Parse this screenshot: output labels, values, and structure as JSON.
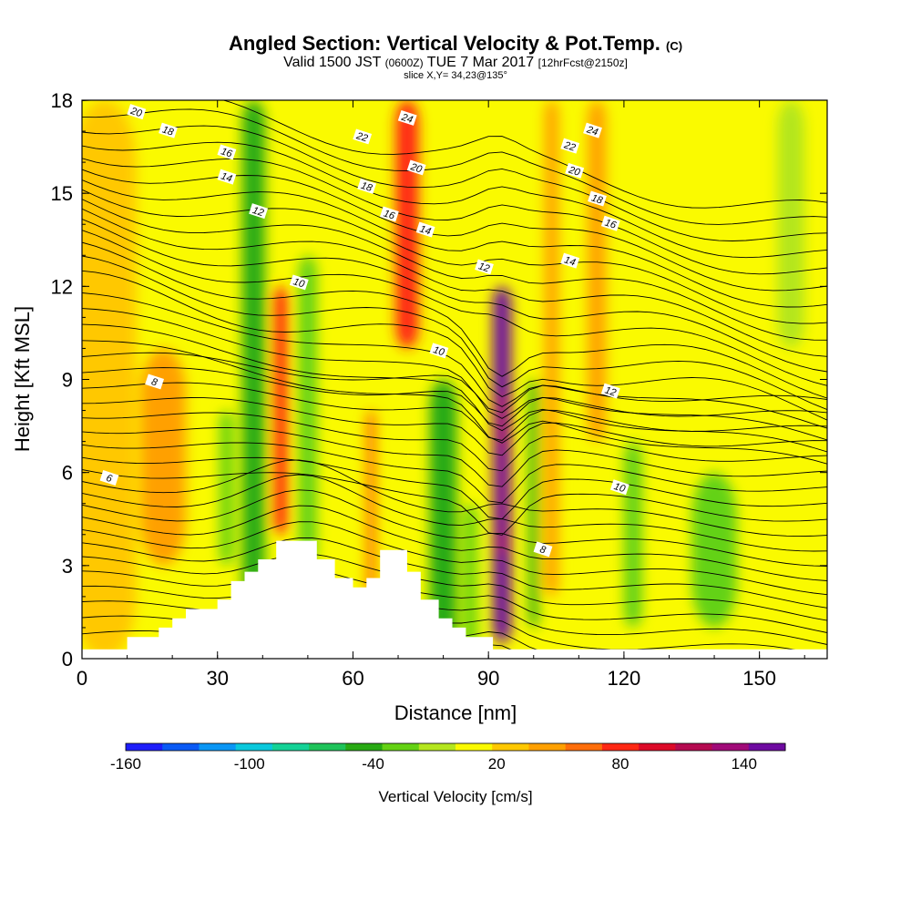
{
  "title": {
    "main": "Angled Section: Vertical Velocity & Pot.Temp.",
    "main_suffix": "(C)",
    "valid_prefix": "Valid 1500 JST",
    "valid_z": "(0600Z)",
    "valid_date": "TUE 7 Mar 2017",
    "valid_fcst": "[12hrFcst@2150z]",
    "slice": "slice X,Y= 34,23@135°"
  },
  "chart_data": {
    "type": "heatmap",
    "xlabel": "Distance [nm]",
    "ylabel": "Height [Kft MSL]",
    "xlim": [
      0,
      165
    ],
    "ylim": [
      0,
      18
    ],
    "x_ticks": [
      0,
      30,
      60,
      90,
      120,
      150
    ],
    "y_ticks": [
      0,
      3,
      6,
      9,
      12,
      15,
      18
    ],
    "terrain": [
      [
        0,
        0.3
      ],
      [
        10,
        0.3
      ],
      [
        10,
        0.7
      ],
      [
        17,
        0.7
      ],
      [
        17,
        1
      ],
      [
        20,
        1
      ],
      [
        20,
        1.3
      ],
      [
        23,
        1.3
      ],
      [
        23,
        1.6
      ],
      [
        30,
        1.6
      ],
      [
        30,
        1.9
      ],
      [
        33,
        1.9
      ],
      [
        33,
        2.5
      ],
      [
        36,
        2.5
      ],
      [
        36,
        2.8
      ],
      [
        39,
        2.8
      ],
      [
        39,
        3.2
      ],
      [
        43,
        3.2
      ],
      [
        43,
        3.8
      ],
      [
        52,
        3.8
      ],
      [
        52,
        3.2
      ],
      [
        56,
        3.2
      ],
      [
        56,
        2.6
      ],
      [
        60,
        2.6
      ],
      [
        60,
        2.3
      ],
      [
        63,
        2.3
      ],
      [
        63,
        2.6
      ],
      [
        66,
        2.6
      ],
      [
        66,
        3.5
      ],
      [
        72,
        3.5
      ],
      [
        72,
        2.8
      ],
      [
        75,
        2.8
      ],
      [
        75,
        1.9
      ],
      [
        79,
        1.9
      ],
      [
        79,
        1.3
      ],
      [
        82,
        1.3
      ],
      [
        82,
        1
      ],
      [
        85,
        1
      ],
      [
        85,
        0.7
      ],
      [
        91,
        0.7
      ],
      [
        91,
        0.3
      ],
      [
        165,
        0.3
      ]
    ],
    "colorbar": {
      "label": "Vertical Velocity [cm/s]",
      "tick_labels": [
        "-160",
        "-100",
        "-40",
        "20",
        "80",
        "140"
      ],
      "tick_values": [
        -160,
        -100,
        -40,
        20,
        80,
        140
      ],
      "range": [
        -160,
        160
      ],
      "colors": [
        "#1e1efa",
        "#0a5af5",
        "#0a96f5",
        "#0ac8dc",
        "#14d296",
        "#1ec35a",
        "#28aa14",
        "#64d214",
        "#b4e61e",
        "#fafa00",
        "#ffc800",
        "#ffa000",
        "#ff6e0a",
        "#ff2814",
        "#dc0a28",
        "#b40a50",
        "#a00a78",
        "#6e0aa0"
      ]
    },
    "velocity_features": [
      {
        "x": 5,
        "zmin": 0,
        "zmax": 18,
        "width": 14,
        "value": 35
      },
      {
        "x": 18,
        "zmin": 3,
        "zmax": 10,
        "width": 10,
        "value": 50
      },
      {
        "x": 38,
        "zmin": 1,
        "zmax": 18,
        "width": 5,
        "value": -45
      },
      {
        "x": 32,
        "zmin": 3,
        "zmax": 8,
        "width": 3,
        "value": -30
      },
      {
        "x": 44,
        "zmin": 4,
        "zmax": 12,
        "width": 3,
        "value": 80
      },
      {
        "x": 50,
        "zmin": 3,
        "zmax": 13,
        "width": 4,
        "value": -20
      },
      {
        "x": 64,
        "zmin": 2,
        "zmax": 8,
        "width": 2,
        "value": 70
      },
      {
        "x": 72,
        "zmin": 10,
        "zmax": 18,
        "width": 5,
        "value": 80
      },
      {
        "x": 80,
        "zmin": 0,
        "zmax": 9,
        "width": 6,
        "value": -40
      },
      {
        "x": 86,
        "zmin": 0,
        "zmax": 5,
        "width": 3,
        "value": -30
      },
      {
        "x": 93,
        "zmin": 0.5,
        "zmax": 12,
        "width": 4,
        "value": 150
      },
      {
        "x": 100,
        "zmin": 1,
        "zmax": 9,
        "width": 2,
        "value": -50
      },
      {
        "x": 104,
        "zmin": 2,
        "zmax": 18,
        "width": 3,
        "value": 40
      },
      {
        "x": 114,
        "zmin": 7,
        "zmax": 18,
        "width": 4,
        "value": 50
      },
      {
        "x": 122,
        "zmin": 1,
        "zmax": 7,
        "width": 4,
        "value": -35
      },
      {
        "x": 140,
        "zmin": 1,
        "zmax": 6,
        "width": 10,
        "value": -20
      },
      {
        "x": 157,
        "zmin": 10,
        "zmax": 18,
        "width": 6,
        "value": -15
      }
    ],
    "contour_labels": [
      {
        "x": 12,
        "z": 17.6,
        "text": "20"
      },
      {
        "x": 19,
        "z": 17.0,
        "text": "18"
      },
      {
        "x": 32,
        "z": 16.3,
        "text": "16"
      },
      {
        "x": 32,
        "z": 15.5,
        "text": "14"
      },
      {
        "x": 39,
        "z": 14.4,
        "text": "12"
      },
      {
        "x": 48,
        "z": 12.1,
        "text": "10"
      },
      {
        "x": 16,
        "z": 8.9,
        "text": "8"
      },
      {
        "x": 6,
        "z": 5.8,
        "text": "6"
      },
      {
        "x": 62,
        "z": 16.8,
        "text": "22"
      },
      {
        "x": 63,
        "z": 15.2,
        "text": "18"
      },
      {
        "x": 68,
        "z": 14.3,
        "text": "16"
      },
      {
        "x": 72,
        "z": 17.4,
        "text": "24"
      },
      {
        "x": 74,
        "z": 15.8,
        "text": "20"
      },
      {
        "x": 76,
        "z": 13.8,
        "text": "14"
      },
      {
        "x": 89,
        "z": 12.6,
        "text": "12"
      },
      {
        "x": 79,
        "z": 9.9,
        "text": "10"
      },
      {
        "x": 113,
        "z": 17.0,
        "text": "24"
      },
      {
        "x": 108,
        "z": 16.5,
        "text": "22"
      },
      {
        "x": 109,
        "z": 15.7,
        "text": "20"
      },
      {
        "x": 114,
        "z": 14.8,
        "text": "18"
      },
      {
        "x": 117,
        "z": 14.0,
        "text": "16"
      },
      {
        "x": 108,
        "z": 12.8,
        "text": "14"
      },
      {
        "x": 117,
        "z": 8.6,
        "text": "12"
      },
      {
        "x": 119,
        "z": 5.5,
        "text": "10"
      },
      {
        "x": 102,
        "z": 3.5,
        "text": "8"
      }
    ]
  }
}
